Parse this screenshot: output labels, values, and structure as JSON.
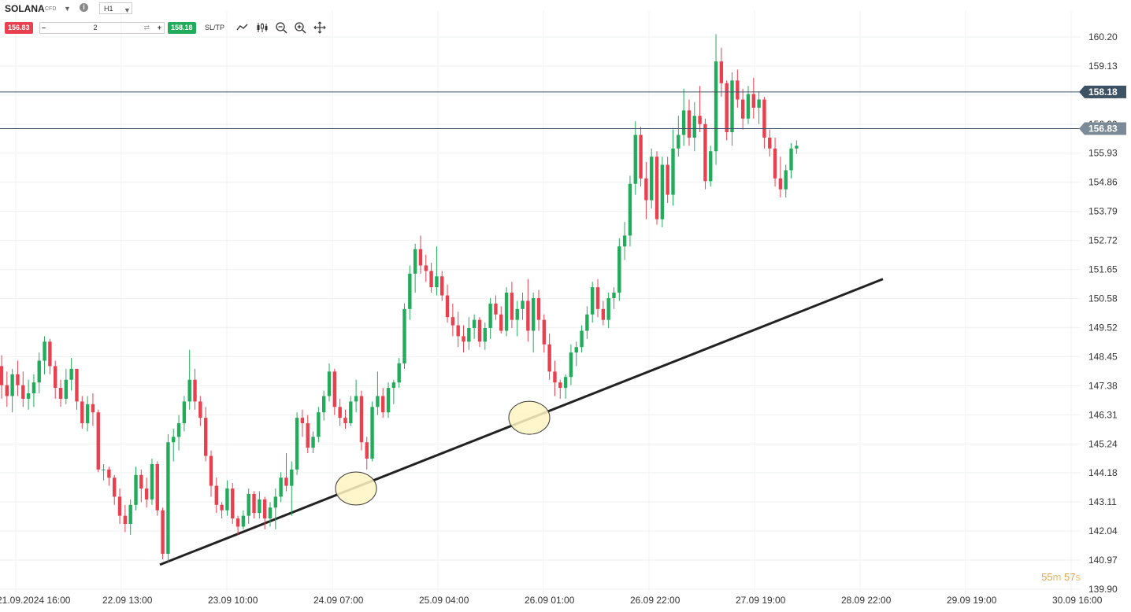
{
  "header": {
    "symbol": "SOLANA",
    "instrument_type": "CFD",
    "timeframe": "H1",
    "sell_price": "156.83",
    "buy_price": "158.18",
    "quantity": "2",
    "sltp_label": "SL/TP",
    "icons": [
      "chevron-down-icon",
      "info-icon",
      "minus-icon",
      "swap-icon",
      "plus-icon",
      "line-chart-icon",
      "candlestick-icon",
      "zoom-out-icon",
      "zoom-in-icon",
      "crosshair-icon"
    ]
  },
  "timer": {
    "minutes": "55",
    "m_unit": "m",
    "seconds": "57",
    "s_unit": "s"
  },
  "colors": {
    "up": "#22ab5a",
    "down": "#e8404f",
    "ask_tag": "#3d5264",
    "bid_tag": "#7a8a96",
    "trendline": "#222222",
    "highlight": "#fff5c2"
  },
  "chart_data": {
    "type": "candlestick",
    "y_ticks": [
      "160.20",
      "159.13",
      "158.06",
      "156.99",
      "155.93",
      "154.86",
      "153.79",
      "152.72",
      "151.65",
      "150.58",
      "149.52",
      "148.45",
      "147.38",
      "146.31",
      "145.24",
      "144.18",
      "143.11",
      "142.04",
      "140.97",
      "139.90"
    ],
    "y_range": [
      139.9,
      160.2
    ],
    "x_ticks": [
      "21.09.2024 16:00",
      "22.09 13:00",
      "23.09 10:00",
      "24.09 07:00",
      "25.09 04:00",
      "26.09 01:00",
      "26.09 22:00",
      "27.09 19:00",
      "28.09 22:00",
      "29.09 19:00",
      "30.09 16:00"
    ],
    "price_lines": [
      {
        "name": "ask",
        "value": 158.18,
        "label": "158.18"
      },
      {
        "name": "bid",
        "value": 156.83,
        "label": "156.83"
      }
    ],
    "trendline": {
      "start": {
        "candle": 0,
        "price": 140.8
      },
      "end": {
        "candle": 0,
        "price": 151.3
      }
    },
    "highlights": [
      {
        "price": 143.6
      },
      {
        "price": 146.2
      }
    ],
    "ohlc": [
      [
        148.1,
        148.5,
        146.9,
        147.4
      ],
      [
        147.4,
        147.9,
        146.6,
        147.0
      ],
      [
        147.0,
        148.0,
        146.4,
        147.8
      ],
      [
        147.8,
        148.3,
        147.0,
        147.4
      ],
      [
        147.4,
        147.9,
        146.6,
        146.9
      ],
      [
        146.9,
        147.6,
        146.5,
        147.1
      ],
      [
        147.1,
        147.8,
        146.6,
        147.5
      ],
      [
        147.5,
        148.6,
        147.1,
        148.3
      ],
      [
        148.3,
        149.2,
        147.8,
        149.0
      ],
      [
        149.0,
        149.1,
        147.8,
        148.1
      ],
      [
        148.1,
        148.3,
        146.9,
        147.3
      ],
      [
        147.3,
        147.6,
        146.6,
        146.9
      ],
      [
        146.9,
        148.0,
        146.7,
        147.6
      ],
      [
        147.6,
        148.4,
        147.2,
        148.0
      ],
      [
        148.0,
        148.0,
        146.5,
        146.8
      ],
      [
        146.8,
        147.0,
        145.8,
        146.0
      ],
      [
        146.0,
        147.0,
        145.7,
        146.7
      ],
      [
        146.7,
        147.1,
        145.9,
        146.4
      ],
      [
        146.4,
        146.5,
        144.2,
        144.3
      ],
      [
        144.3,
        144.5,
        143.9,
        144.3
      ],
      [
        144.3,
        144.4,
        143.7,
        144.0
      ],
      [
        144.0,
        144.1,
        143.0,
        143.3
      ],
      [
        143.3,
        143.6,
        142.3,
        142.6
      ],
      [
        142.6,
        143.0,
        142.0,
        142.3
      ],
      [
        142.3,
        143.2,
        141.9,
        143.0
      ],
      [
        143.0,
        144.4,
        142.8,
        144.1
      ],
      [
        144.1,
        144.3,
        143.1,
        143.6
      ],
      [
        143.6,
        144.0,
        142.9,
        143.2
      ],
      [
        143.2,
        144.7,
        143.0,
        144.5
      ],
      [
        144.5,
        144.6,
        142.6,
        142.8
      ],
      [
        142.8,
        142.9,
        141.0,
        141.2
      ],
      [
        141.2,
        145.6,
        140.9,
        145.3
      ],
      [
        145.3,
        145.8,
        144.6,
        145.5
      ],
      [
        145.5,
        146.3,
        145.0,
        146.0
      ],
      [
        146.0,
        147.0,
        145.7,
        146.8
      ],
      [
        146.8,
        148.7,
        146.5,
        147.6
      ],
      [
        147.6,
        148.0,
        146.5,
        146.8
      ],
      [
        146.8,
        147.0,
        145.9,
        146.2
      ],
      [
        146.2,
        146.6,
        144.6,
        144.8
      ],
      [
        144.8,
        145.0,
        143.3,
        143.7
      ],
      [
        143.7,
        144.0,
        142.7,
        143.0
      ],
      [
        143.0,
        143.1,
        142.5,
        142.8
      ],
      [
        142.8,
        143.9,
        142.6,
        143.6
      ],
      [
        143.6,
        143.8,
        142.3,
        142.5
      ],
      [
        142.5,
        142.6,
        141.9,
        142.2
      ],
      [
        142.2,
        142.8,
        142.1,
        142.6
      ],
      [
        142.6,
        143.6,
        142.3,
        143.4
      ],
      [
        143.4,
        143.5,
        142.5,
        142.7
      ],
      [
        142.7,
        143.5,
        142.5,
        143.2
      ],
      [
        143.2,
        143.3,
        142.1,
        142.5
      ],
      [
        142.5,
        143.1,
        142.2,
        142.9
      ],
      [
        142.9,
        143.6,
        142.1,
        143.3
      ],
      [
        143.3,
        144.2,
        143.1,
        144.0
      ],
      [
        144.0,
        144.9,
        143.5,
        143.7
      ],
      [
        143.7,
        144.6,
        142.6,
        144.3
      ],
      [
        144.3,
        146.4,
        144.1,
        146.2
      ],
      [
        146.2,
        146.5,
        145.5,
        146.0
      ],
      [
        146.0,
        146.3,
        144.9,
        145.1
      ],
      [
        145.1,
        145.7,
        144.9,
        145.5
      ],
      [
        145.5,
        146.6,
        145.3,
        146.4
      ],
      [
        146.4,
        147.2,
        146.1,
        147.0
      ],
      [
        147.0,
        148.2,
        146.8,
        147.9
      ],
      [
        147.9,
        148.0,
        146.3,
        146.6
      ],
      [
        146.6,
        146.9,
        145.9,
        146.2
      ],
      [
        146.2,
        146.5,
        145.8,
        146.0
      ],
      [
        146.0,
        147.0,
        145.9,
        146.8
      ],
      [
        146.8,
        147.6,
        146.4,
        147.0
      ],
      [
        147.0,
        147.2,
        145.0,
        145.3
      ],
      [
        145.3,
        145.5,
        144.3,
        144.7
      ],
      [
        144.7,
        146.8,
        144.6,
        146.6
      ],
      [
        146.6,
        147.9,
        146.3,
        147.0
      ],
      [
        147.0,
        147.3,
        146.2,
        146.4
      ],
      [
        146.4,
        147.5,
        146.2,
        147.3
      ],
      [
        147.3,
        147.6,
        146.7,
        147.5
      ],
      [
        147.5,
        148.4,
        147.3,
        148.2
      ],
      [
        148.2,
        150.4,
        148.0,
        150.2
      ],
      [
        150.2,
        151.8,
        149.8,
        151.5
      ],
      [
        151.5,
        152.6,
        150.8,
        152.4
      ],
      [
        152.4,
        152.9,
        151.5,
        151.8
      ],
      [
        151.8,
        152.2,
        151.2,
        151.6
      ],
      [
        151.6,
        151.9,
        150.8,
        151.0
      ],
      [
        151.0,
        152.5,
        150.7,
        151.4
      ],
      [
        151.4,
        151.6,
        150.5,
        150.7
      ],
      [
        150.7,
        151.1,
        149.7,
        149.9
      ],
      [
        149.9,
        150.4,
        149.2,
        149.6
      ],
      [
        149.6,
        150.1,
        148.8,
        149.2
      ],
      [
        149.2,
        149.6,
        148.6,
        149.0
      ],
      [
        149.0,
        149.9,
        148.7,
        149.5
      ],
      [
        149.5,
        150.0,
        149.1,
        149.8
      ],
      [
        149.8,
        149.9,
        148.8,
        149.0
      ],
      [
        149.0,
        149.7,
        148.7,
        149.5
      ],
      [
        149.5,
        150.6,
        149.1,
        150.4
      ],
      [
        150.4,
        150.7,
        149.8,
        150.0
      ],
      [
        150.0,
        150.3,
        149.3,
        149.4
      ],
      [
        149.4,
        151.0,
        149.2,
        150.8
      ],
      [
        150.8,
        151.2,
        149.5,
        149.8
      ],
      [
        149.8,
        150.5,
        149.2,
        150.2
      ],
      [
        150.2,
        150.8,
        149.8,
        150.5
      ],
      [
        150.5,
        151.3,
        149.0,
        149.4
      ],
      [
        149.4,
        150.8,
        148.6,
        150.6
      ],
      [
        150.6,
        150.9,
        149.4,
        149.8
      ],
      [
        149.8,
        150.0,
        148.6,
        148.9
      ],
      [
        148.9,
        149.3,
        147.6,
        147.9
      ],
      [
        147.9,
        148.3,
        147.0,
        147.5
      ],
      [
        147.5,
        147.6,
        146.9,
        147.3
      ],
      [
        147.3,
        147.8,
        146.9,
        147.7
      ],
      [
        147.7,
        148.9,
        147.4,
        148.6
      ],
      [
        148.6,
        149.0,
        148.1,
        148.8
      ],
      [
        148.8,
        149.6,
        148.6,
        149.4
      ],
      [
        149.4,
        150.3,
        149.1,
        150.0
      ],
      [
        150.0,
        151.2,
        149.7,
        151.0
      ],
      [
        151.0,
        151.3,
        149.9,
        150.2
      ],
      [
        150.2,
        150.5,
        149.6,
        149.8
      ],
      [
        149.8,
        150.8,
        149.5,
        150.6
      ],
      [
        150.6,
        151.0,
        150.2,
        150.8
      ],
      [
        150.8,
        152.8,
        150.5,
        152.5
      ],
      [
        152.5,
        153.4,
        152.0,
        152.9
      ],
      [
        152.9,
        155.1,
        152.5,
        154.8
      ],
      [
        154.8,
        157.1,
        154.4,
        156.6
      ],
      [
        156.6,
        156.9,
        154.7,
        155.0
      ],
      [
        155.0,
        155.6,
        153.5,
        154.2
      ],
      [
        154.2,
        156.1,
        153.9,
        155.8
      ],
      [
        155.8,
        156.0,
        153.3,
        153.5
      ],
      [
        153.5,
        155.8,
        153.2,
        155.5
      ],
      [
        155.5,
        155.8,
        154.1,
        154.4
      ],
      [
        154.4,
        156.8,
        154.0,
        156.1
      ],
      [
        156.1,
        157.3,
        155.8,
        156.6
      ],
      [
        156.6,
        158.3,
        156.2,
        157.5
      ],
      [
        157.5,
        157.9,
        156.2,
        156.5
      ],
      [
        156.5,
        157.8,
        156.0,
        157.3
      ],
      [
        157.3,
        158.4,
        156.7,
        157.0
      ],
      [
        157.0,
        157.2,
        154.6,
        154.9
      ],
      [
        154.9,
        156.2,
        154.7,
        156.0
      ],
      [
        156.0,
        160.3,
        155.5,
        159.3
      ],
      [
        159.3,
        159.8,
        158.0,
        158.5
      ],
      [
        158.5,
        158.6,
        156.4,
        156.7
      ],
      [
        156.7,
        158.9,
        156.2,
        158.6
      ],
      [
        158.6,
        159.0,
        157.6,
        157.9
      ],
      [
        157.9,
        158.3,
        156.8,
        157.2
      ],
      [
        157.2,
        158.4,
        157.0,
        158.1
      ],
      [
        158.1,
        158.7,
        157.2,
        157.6
      ],
      [
        157.6,
        158.2,
        157.0,
        157.9
      ],
      [
        157.9,
        158.0,
        156.1,
        156.5
      ],
      [
        156.5,
        156.8,
        155.8,
        156.1
      ],
      [
        156.1,
        156.5,
        154.7,
        155.0
      ],
      [
        155.0,
        155.8,
        154.3,
        154.6
      ],
      [
        154.6,
        155.5,
        154.3,
        155.3
      ],
      [
        155.3,
        156.3,
        155.0,
        156.1
      ],
      [
        156.1,
        156.4,
        155.9,
        156.2
      ]
    ]
  }
}
